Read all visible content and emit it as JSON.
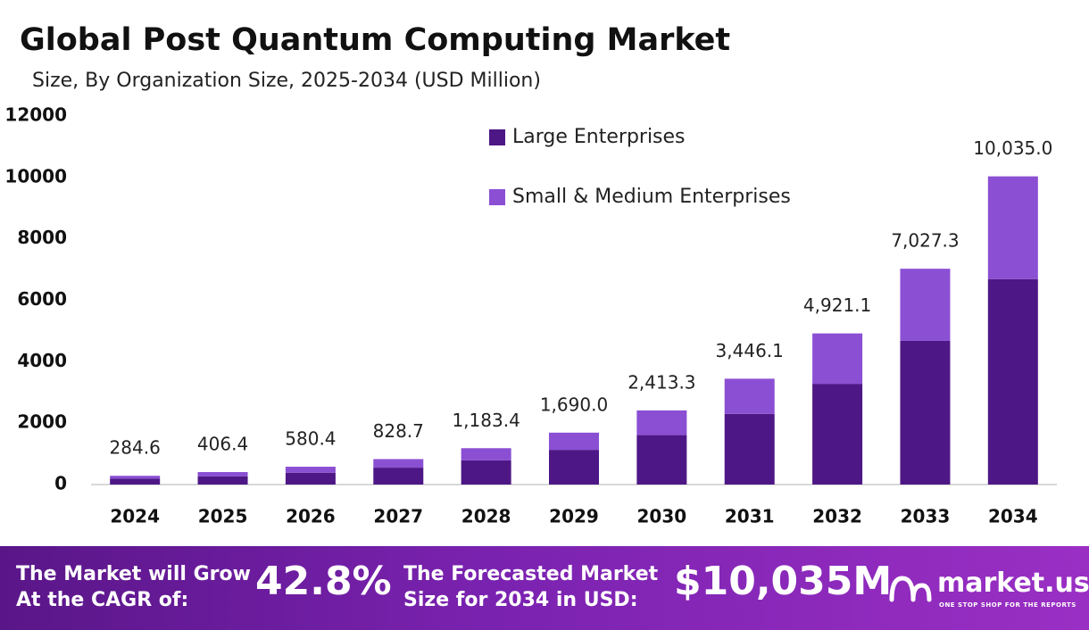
{
  "chart_data": {
    "type": "bar",
    "stacked": true,
    "title": "Global Post Quantum Computing Market",
    "subtitle": "Size, By Organization Size, 2025-2034 (USD Million)",
    "categories": [
      "2024",
      "2025",
      "2026",
      "2027",
      "2028",
      "2029",
      "2030",
      "2031",
      "2032",
      "2033",
      "2034"
    ],
    "series": [
      {
        "name": "Large Enterprises",
        "color": "#4e1786",
        "values": [
          190,
          270,
          385,
          550,
          790,
          1130,
          1610,
          2300,
          3280,
          4680,
          6690
        ]
      },
      {
        "name": "Small & Medium Enterprises",
        "color": "#8b4fd3",
        "values": [
          94.6,
          136.4,
          195.4,
          278.7,
          393.4,
          560.0,
          803.3,
          1146.1,
          1641.1,
          2347.3,
          3345.0
        ]
      }
    ],
    "totals": {
      "values": [
        284.6,
        406.4,
        580.4,
        828.7,
        1183.4,
        1690.0,
        2413.3,
        3446.1,
        4921.1,
        7027.3,
        10035.0
      ],
      "value_labels": [
        "284.6",
        "406.4",
        "580.4",
        "828.7",
        "1,183.4",
        "1,690.0",
        "2,413.3",
        "3,446.1",
        "4,921.1",
        "7,027.3",
        "10,035.0"
      ]
    },
    "ylim": [
      0,
      12000
    ],
    "yticks": [
      0,
      2000,
      4000,
      6000,
      8000,
      10000,
      12000
    ],
    "grid": false,
    "legend": "top"
  },
  "footer": {
    "cagr_label": "The Market will Grow\nAt the CAGR of:",
    "cagr_value": "42.8%",
    "forecast_label": "The Forecasted Market\nSize for 2034 in USD:",
    "forecast_value": "$10,035M",
    "logo": "market.us",
    "tagline": "ONE STOP SHOP FOR THE REPORTS"
  }
}
